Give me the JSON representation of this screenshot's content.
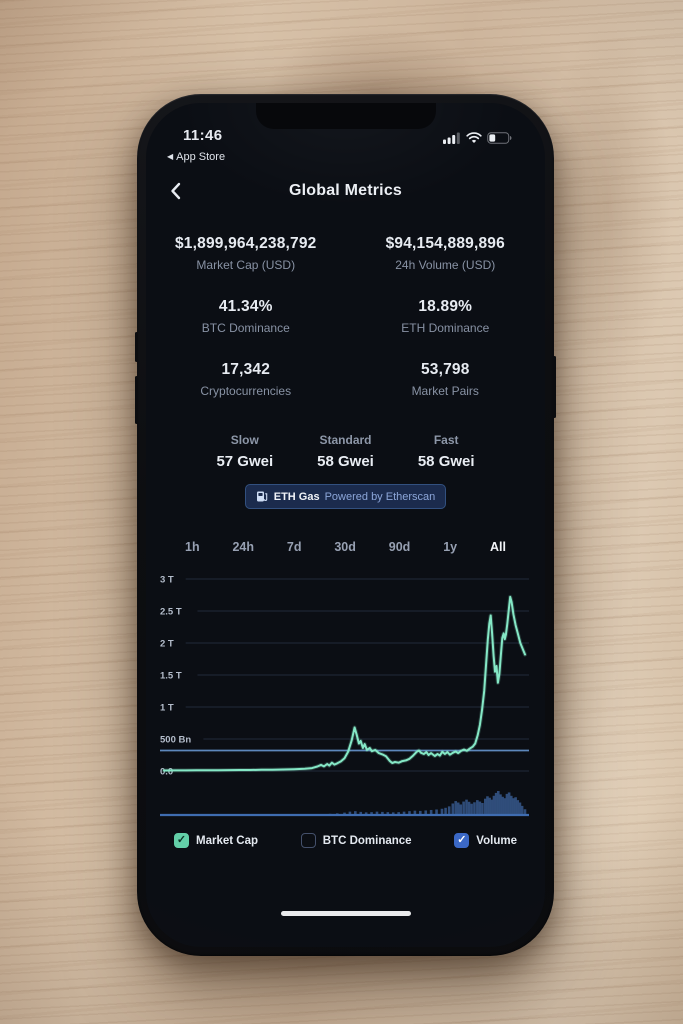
{
  "status_bar": {
    "time": "11:46",
    "back_glyph": "◀",
    "back_app_label": "App Store",
    "battery_percent": 32,
    "signal_bars_lit": 3
  },
  "header": {
    "title": "Global Metrics"
  },
  "stats": [
    {
      "value": "$1,899,964,238,792",
      "label": "Market Cap (USD)"
    },
    {
      "value": "$94,154,889,896",
      "label": "24h Volume (USD)"
    },
    {
      "value": "41.34%",
      "label": "BTC Dominance"
    },
    {
      "value": "18.89%",
      "label": "ETH Dominance"
    },
    {
      "value": "17,342",
      "label": "Cryptocurrencies"
    },
    {
      "value": "53,798",
      "label": "Market Pairs"
    }
  ],
  "gas": {
    "items": [
      {
        "label": "Slow",
        "value": "57 Gwei"
      },
      {
        "label": "Standard",
        "value": "58 Gwei"
      },
      {
        "label": "Fast",
        "value": "58 Gwei"
      }
    ],
    "badge": {
      "bold": "ETH Gas",
      "rest": "Powered by Etherscan"
    }
  },
  "tabs": {
    "items": [
      "1h",
      "24h",
      "7d",
      "30d",
      "90d",
      "1y",
      "All"
    ],
    "active": "All"
  },
  "chart_data": {
    "type": "line",
    "title": "",
    "x": "time (All range selected, no visible x tick labels)",
    "grid": true,
    "legend_position": "bottom",
    "y_axis": {
      "unit": "USD",
      "ylim_bn": [
        0,
        3000
      ],
      "ticks": [
        {
          "label": "3 T",
          "value_bn": 3000
        },
        {
          "label": "2.5 T",
          "value_bn": 2500
        },
        {
          "label": "2 T",
          "value_bn": 2000
        },
        {
          "label": "1.5 T",
          "value_bn": 1500
        },
        {
          "label": "1 T",
          "value_bn": 1000
        },
        {
          "label": "500 Bn",
          "value_bn": 500
        },
        {
          "label": "0.0",
          "value_bn": 0
        }
      ]
    },
    "reference_line_bn": 320,
    "series": [
      {
        "name": "Market Cap",
        "type": "line",
        "color": "#85e8c6",
        "points": [
          [
            0,
            8
          ],
          [
            0.03,
            9
          ],
          [
            0.06,
            10
          ],
          [
            0.09,
            11
          ],
          [
            0.12,
            12
          ],
          [
            0.15,
            13
          ],
          [
            0.18,
            14
          ],
          [
            0.21,
            15
          ],
          [
            0.24,
            16
          ],
          [
            0.27,
            18
          ],
          [
            0.3,
            20
          ],
          [
            0.33,
            24
          ],
          [
            0.36,
            28
          ],
          [
            0.39,
            34
          ],
          [
            0.41,
            45
          ],
          [
            0.425,
            70
          ],
          [
            0.435,
            95
          ],
          [
            0.443,
            72
          ],
          [
            0.452,
            110
          ],
          [
            0.458,
            85
          ],
          [
            0.465,
            130
          ],
          [
            0.472,
            100
          ],
          [
            0.48,
            120
          ],
          [
            0.49,
            150
          ],
          [
            0.5,
            200
          ],
          [
            0.51,
            300
          ],
          [
            0.52,
            480
          ],
          [
            0.528,
            680
          ],
          [
            0.534,
            560
          ],
          [
            0.54,
            430
          ],
          [
            0.545,
            470
          ],
          [
            0.551,
            360
          ],
          [
            0.556,
            420
          ],
          [
            0.562,
            330
          ],
          [
            0.57,
            360
          ],
          [
            0.576,
            310
          ],
          [
            0.585,
            330
          ],
          [
            0.595,
            280
          ],
          [
            0.605,
            260
          ],
          [
            0.615,
            230
          ],
          [
            0.625,
            160
          ],
          [
            0.632,
            125
          ],
          [
            0.64,
            140
          ],
          [
            0.65,
            130
          ],
          [
            0.66,
            155
          ],
          [
            0.67,
            165
          ],
          [
            0.68,
            190
          ],
          [
            0.69,
            240
          ],
          [
            0.7,
            300
          ],
          [
            0.706,
            320
          ],
          [
            0.712,
            285
          ],
          [
            0.72,
            265
          ],
          [
            0.727,
            295
          ],
          [
            0.733,
            250
          ],
          [
            0.74,
            280
          ],
          [
            0.75,
            235
          ],
          [
            0.758,
            265
          ],
          [
            0.764,
            240
          ],
          [
            0.771,
            300
          ],
          [
            0.778,
            265
          ],
          [
            0.785,
            295
          ],
          [
            0.792,
            255
          ],
          [
            0.8,
            285
          ],
          [
            0.808,
            305
          ],
          [
            0.815,
            280
          ],
          [
            0.823,
            315
          ],
          [
            0.831,
            335
          ],
          [
            0.839,
            315
          ],
          [
            0.847,
            350
          ],
          [
            0.855,
            380
          ],
          [
            0.862,
            430
          ],
          [
            0.869,
            560
          ],
          [
            0.875,
            720
          ],
          [
            0.881,
            950
          ],
          [
            0.887,
            1250
          ],
          [
            0.892,
            1650
          ],
          [
            0.897,
            2050
          ],
          [
            0.901,
            2300
          ],
          [
            0.905,
            2430
          ],
          [
            0.909,
            2150
          ],
          [
            0.913,
            1800
          ],
          [
            0.917,
            1550
          ],
          [
            0.921,
            1640
          ],
          [
            0.925,
            1380
          ],
          [
            0.929,
            1520
          ],
          [
            0.933,
            1800
          ],
          [
            0.937,
            2080
          ],
          [
            0.941,
            2150
          ],
          [
            0.944,
            2060
          ],
          [
            0.947,
            2130
          ],
          [
            0.951,
            2300
          ],
          [
            0.955,
            2520
          ],
          [
            0.959,
            2720
          ],
          [
            0.963,
            2640
          ],
          [
            0.968,
            2450
          ],
          [
            0.974,
            2280
          ],
          [
            0.98,
            2150
          ],
          [
            0.987,
            2000
          ],
          [
            1,
            1820
          ]
        ]
      },
      {
        "name": "Volume",
        "type": "bar",
        "color": "#31507e",
        "points": [
          [
            0.3,
            1
          ],
          [
            0.35,
            1
          ],
          [
            0.4,
            2
          ],
          [
            0.42,
            3
          ],
          [
            0.44,
            4
          ],
          [
            0.46,
            5
          ],
          [
            0.48,
            7
          ],
          [
            0.5,
            10
          ],
          [
            0.515,
            14
          ],
          [
            0.53,
            16
          ],
          [
            0.545,
            13
          ],
          [
            0.56,
            11
          ],
          [
            0.575,
            12
          ],
          [
            0.59,
            14
          ],
          [
            0.605,
            13
          ],
          [
            0.62,
            12
          ],
          [
            0.635,
            11
          ],
          [
            0.65,
            12
          ],
          [
            0.665,
            14
          ],
          [
            0.68,
            16
          ],
          [
            0.695,
            18
          ],
          [
            0.71,
            17
          ],
          [
            0.725,
            19
          ],
          [
            0.74,
            21
          ],
          [
            0.755,
            23
          ],
          [
            0.77,
            26
          ],
          [
            0.78,
            30
          ],
          [
            0.79,
            36
          ],
          [
            0.8,
            48
          ],
          [
            0.808,
            58
          ],
          [
            0.815,
            52
          ],
          [
            0.822,
            44
          ],
          [
            0.83,
            56
          ],
          [
            0.838,
            64
          ],
          [
            0.845,
            55
          ],
          [
            0.852,
            47
          ],
          [
            0.86,
            53
          ],
          [
            0.868,
            62
          ],
          [
            0.875,
            56
          ],
          [
            0.882,
            50
          ],
          [
            0.89,
            68
          ],
          [
            0.896,
            78
          ],
          [
            0.902,
            72
          ],
          [
            0.908,
            64
          ],
          [
            0.914,
            80
          ],
          [
            0.92,
            92
          ],
          [
            0.926,
            100
          ],
          [
            0.932,
            86
          ],
          [
            0.938,
            76
          ],
          [
            0.944,
            70
          ],
          [
            0.95,
            88
          ],
          [
            0.956,
            94
          ],
          [
            0.962,
            80
          ],
          [
            0.968,
            70
          ],
          [
            0.974,
            74
          ],
          [
            0.98,
            62
          ],
          [
            0.986,
            52
          ],
          [
            0.992,
            38
          ],
          [
            1,
            24
          ]
        ]
      },
      {
        "name": "BTC Dominance",
        "type": "line",
        "hidden": true
      }
    ]
  },
  "legend": [
    {
      "label": "Market Cap",
      "checked": true,
      "color": "#63cfa8",
      "check_color": "#0d3327"
    },
    {
      "label": "BTC Dominance",
      "checked": false,
      "color": "#44506b",
      "check_color": ""
    },
    {
      "label": "Volume",
      "checked": true,
      "color": "#3b68c6",
      "check_color": "#ffffff"
    }
  ],
  "icons": {
    "check_glyph": "✓"
  },
  "colors": {
    "screen_bg": "#0b0e14",
    "grid_line": "#222a3a",
    "tick_label": "#b4bdcb",
    "reference_line": "#5d87bb",
    "volume_baseline": "#3f6cb0",
    "market_cap_line": "#85e8c6",
    "volume_bar": "#31507e"
  }
}
